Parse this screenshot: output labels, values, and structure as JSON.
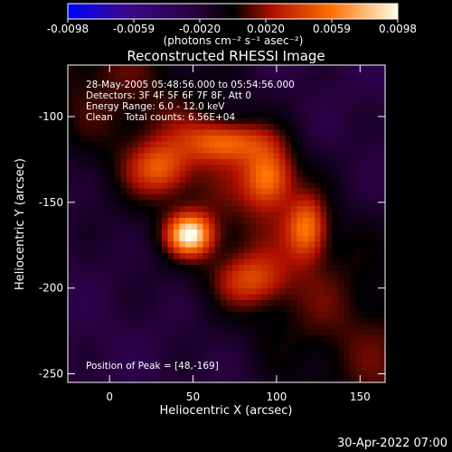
{
  "colorbar": {
    "ticks": [
      "-0.0098",
      "-0.0059",
      "-0.0020",
      "0.0020",
      "0.0059",
      "0.0098"
    ],
    "unit_label": "(photons cm⁻² s⁻¹ asec⁻²)",
    "colors": [
      "#0000ff",
      "#2a0066",
      "#3c0a4a",
      "#000000",
      "#c01500",
      "#ff7a00",
      "#ffffe0"
    ]
  },
  "chart_data": {
    "type": "heatmap",
    "title": "Reconstructed RHESSI Image",
    "xlabel": "Heliocentric X (arcsec)",
    "ylabel": "Heliocentric Y (arcsec)",
    "xlim": [
      -25,
      165
    ],
    "ylim": [
      -255,
      -70
    ],
    "xticks": [
      0,
      50,
      100,
      150
    ],
    "yticks": [
      -100,
      -150,
      -200,
      -250
    ],
    "clim": [
      -0.0098,
      0.0098
    ],
    "peak": [
      48,
      -169
    ],
    "sources": [
      {
        "x": 48,
        "y": -169,
        "flux": 0.0098,
        "sx": 9,
        "sy": 8
      },
      {
        "x": 95,
        "y": -135,
        "flux": 0.0065,
        "sx": 10,
        "sy": 12
      },
      {
        "x": 118,
        "y": -165,
        "flux": 0.006,
        "sx": 8,
        "sy": 12
      },
      {
        "x": 70,
        "y": -115,
        "flux": 0.0055,
        "sx": 18,
        "sy": 8
      },
      {
        "x": 30,
        "y": -130,
        "flux": 0.0045,
        "sx": 12,
        "sy": 10
      },
      {
        "x": 85,
        "y": -195,
        "flux": 0.004,
        "sx": 14,
        "sy": 10
      }
    ]
  },
  "info": {
    "line1": "28-May-2005 05:48:56.000 to 05:54:56.000",
    "line2": "Detectors: 3F 4F 5F 6F 7F 8F, Att 0",
    "line3": "Energy Range: 6.0 - 12.0 keV",
    "line4": "Clean    Total counts: 6.56E+04",
    "peak_text": "Position of Peak = [48,-169]"
  },
  "footer": {
    "date": "30-Apr-2022 07:00"
  }
}
